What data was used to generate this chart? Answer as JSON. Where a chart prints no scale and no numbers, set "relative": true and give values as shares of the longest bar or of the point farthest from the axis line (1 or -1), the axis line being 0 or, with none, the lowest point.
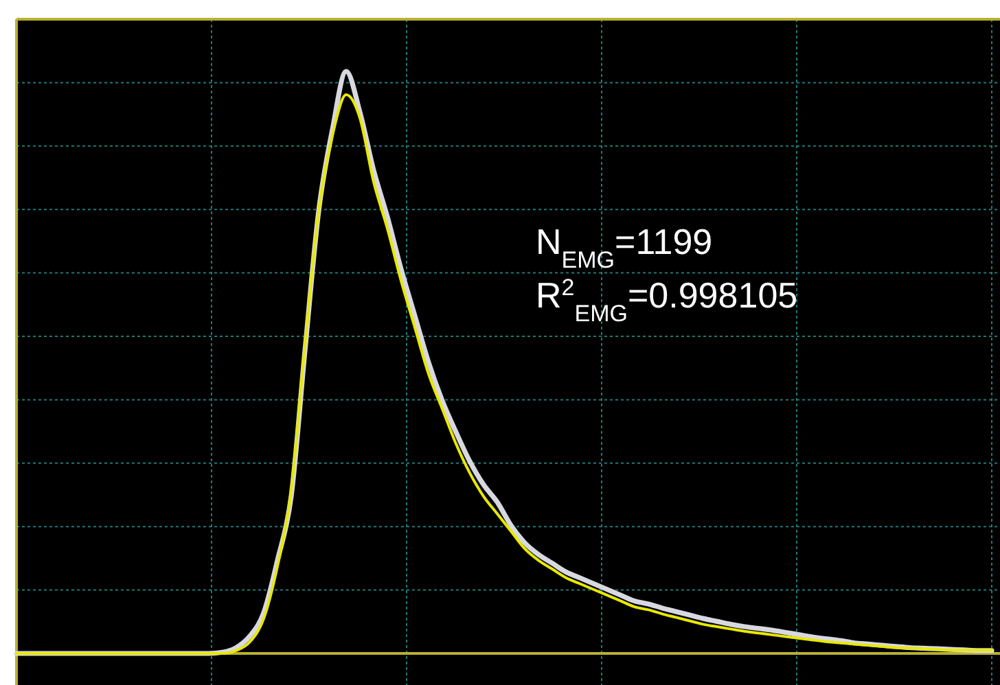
{
  "chart_data": {
    "type": "line",
    "relative": true,
    "grid": true,
    "categories": [
      null,
      null,
      null,
      null,
      null,
      null,
      null,
      null,
      null,
      null,
      null,
      null,
      null,
      null,
      null,
      null,
      null,
      null,
      null,
      null,
      null,
      null,
      null,
      null,
      null,
      null,
      null,
      null,
      null,
      null,
      null,
      null,
      null,
      null,
      null,
      null,
      null,
      null,
      null,
      null,
      null,
      null,
      null,
      null,
      null,
      null,
      null,
      null,
      null,
      null,
      null,
      null,
      null,
      null,
      null,
      null,
      null,
      null,
      null,
      null,
      null,
      null,
      null,
      null,
      null,
      null,
      null,
      null,
      null,
      null,
      null,
      null
    ],
    "series": [
      {
        "color": "#d8d8e0",
        "values": [
          0,
          0,
          0,
          0,
          0,
          0,
          0,
          0,
          0,
          0,
          0,
          0,
          0,
          0,
          0,
          0.002,
          0.01,
          0.03,
          0.07,
          0.16,
          0.27,
          0.52,
          0.76,
          0.9,
          1,
          0.93,
          0.83,
          0.75,
          0.66,
          0.58,
          0.5,
          0.434,
          0.38,
          0.33,
          0.29,
          0.26,
          0.22,
          0.19,
          0.17,
          0.155,
          0.14,
          0.13,
          0.12,
          0.11,
          0.1,
          0.09,
          0.085,
          0.078,
          0.072,
          0.066,
          0.06,
          0.055,
          0.05,
          0.046,
          0.043,
          0.04,
          0.036,
          0.032,
          0.028,
          0.025,
          0.022,
          0.018,
          0.016,
          0.014,
          0.012,
          0.01,
          0.009,
          0.008,
          0.007,
          0.006,
          0.005,
          0.005
        ]
      },
      {
        "color": "#e8e800",
        "values": [
          0,
          0,
          0,
          0,
          0,
          0,
          0,
          0,
          0,
          0,
          0,
          0,
          0,
          0,
          0,
          0,
          0.005,
          0.02,
          0.06,
          0.15,
          0.28,
          0.53,
          0.76,
          0.89,
          0.96,
          0.92,
          0.81,
          0.73,
          0.64,
          0.56,
          0.48,
          0.42,
          0.36,
          0.31,
          0.27,
          0.24,
          0.21,
          0.18,
          0.16,
          0.145,
          0.13,
          0.12,
          0.11,
          0.1,
          0.09,
          0.08,
          0.075,
          0.068,
          0.062,
          0.056,
          0.05,
          0.046,
          0.042,
          0.038,
          0.035,
          0.032,
          0.029,
          0.026,
          0.023,
          0.02,
          0.018,
          0.016,
          0.014,
          0.012,
          0.01,
          0.009,
          0.008,
          0.007,
          0.006,
          0.006,
          0.006,
          0.006
        ]
      }
    ],
    "annotations": [
      "N$_{EMG}$=1199",
      "R$^{2}$$_{EMG}$=0.998105"
    ]
  }
}
